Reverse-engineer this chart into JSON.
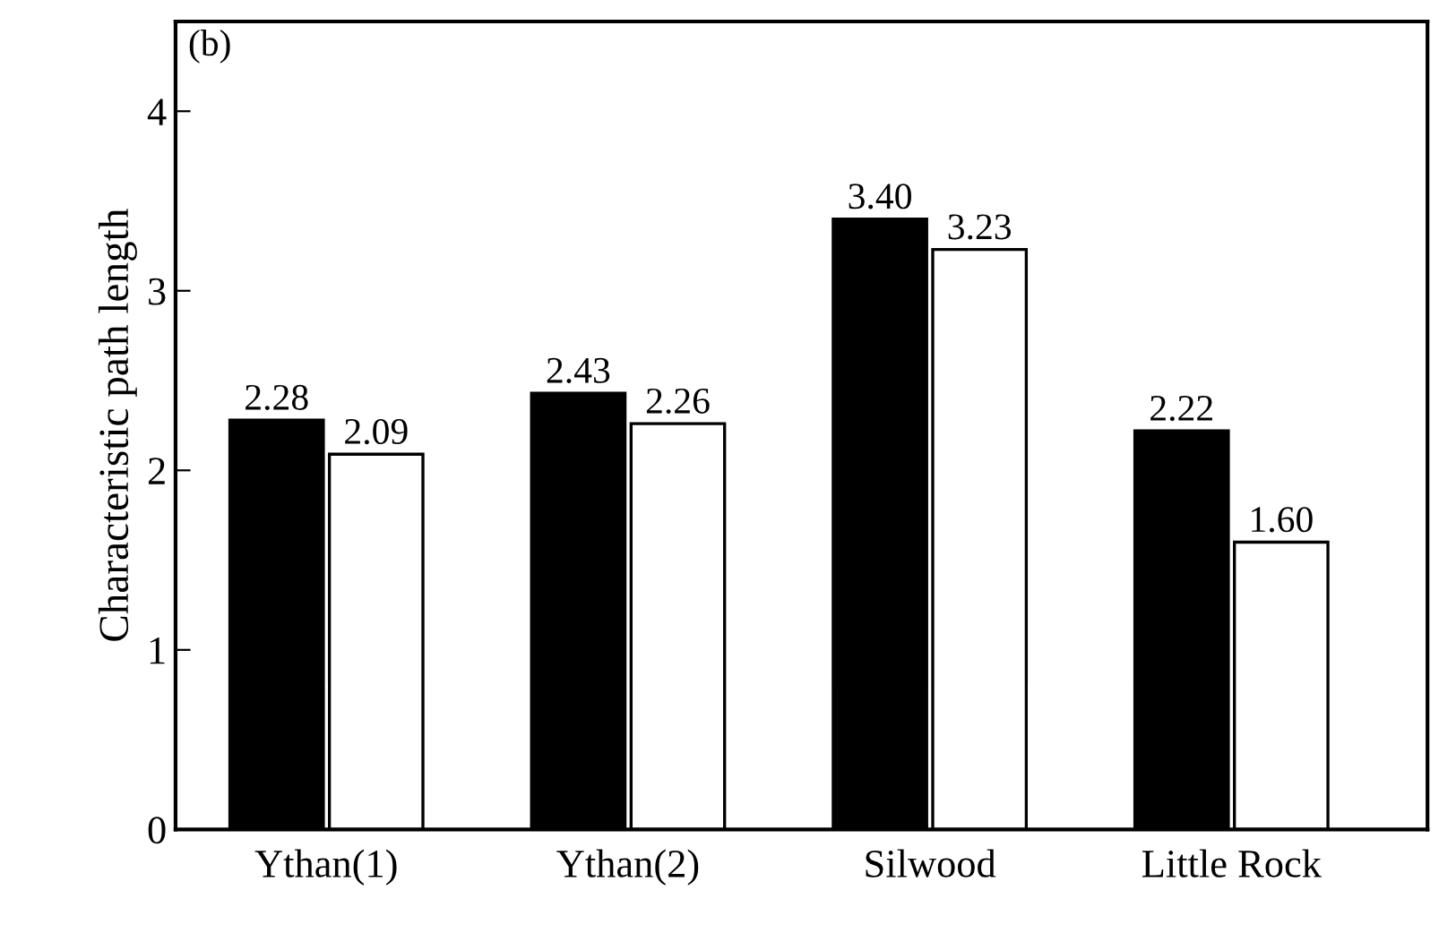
{
  "chart_data": {
    "type": "bar",
    "ylabel": "Characteristic path length",
    "annotations": [
      "(b)"
    ],
    "categories": [
      "Ythan(1)",
      "Ythan(2)",
      "Silwood",
      "Little Rock"
    ],
    "series": [
      {
        "color": "#000000",
        "values": [
          2.28,
          2.43,
          3.4,
          2.22
        ],
        "value_labels": [
          "2.28",
          "2.43",
          "3.40",
          "2.22"
        ]
      },
      {
        "color": "#ffffff",
        "values": [
          2.09,
          2.26,
          3.23,
          1.6
        ],
        "value_labels": [
          "2.09",
          "2.26",
          "3.23",
          "1.60"
        ]
      }
    ],
    "ylim": [
      0,
      4.5
    ],
    "yticks": [
      0,
      1,
      2,
      3,
      4
    ],
    "grid": false,
    "legend": false
  }
}
